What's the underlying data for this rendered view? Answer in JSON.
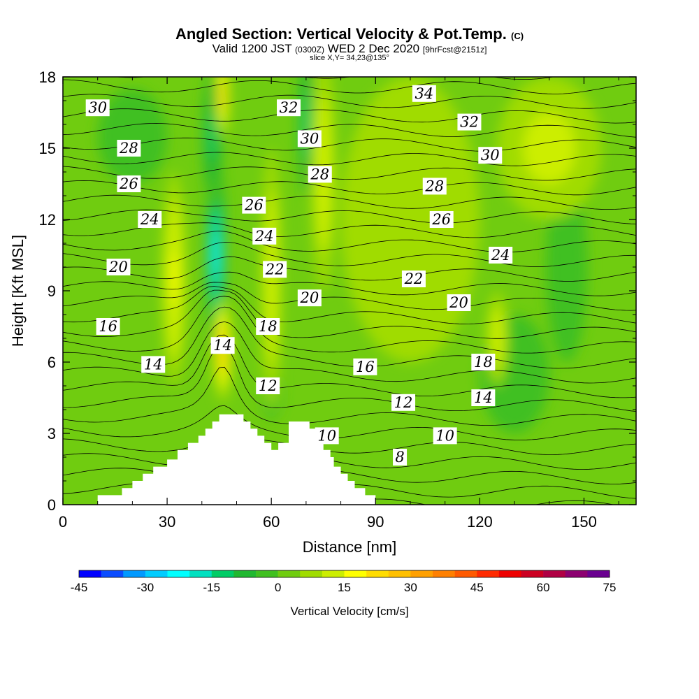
{
  "header": {
    "title_main": "Angled Section: Vertical Velocity & Pot.Temp.",
    "title_mark": "(C)",
    "valid_prefix": "Valid 1200 JST",
    "valid_utc": "(0300Z)",
    "valid_date": "WED 2 Dec 2020",
    "forecast": "[9hrFcst@2151z]",
    "slice": "slice X,Y= 34,23@135°"
  },
  "chart_data": {
    "type": "heatmap",
    "xlabel": "Distance [nm]",
    "ylabel": "Height [Kft MSL]",
    "xlim": [
      0,
      165
    ],
    "ylim": [
      0,
      18
    ],
    "x_ticks": [
      "0",
      "30",
      "60",
      "90",
      "120",
      "150"
    ],
    "y_ticks": [
      "0",
      "3",
      "6",
      "9",
      "12",
      "15",
      "18"
    ],
    "grid": false,
    "field": "Vertical Velocity",
    "colorbar": {
      "title": "Vertical Velocity [cm/s]",
      "min": -45,
      "max": 75,
      "step": 5,
      "tick_labels": [
        "-45",
        "-30",
        "-15",
        "0",
        "15",
        "30",
        "45",
        "60",
        "75"
      ],
      "colors": [
        "#0000ff",
        "#0a4cff",
        "#0099ff",
        "#00ccff",
        "#00ffff",
        "#00e0c0",
        "#00cc66",
        "#20b830",
        "#40c020",
        "#70cc10",
        "#a0dc00",
        "#ccee00",
        "#ffff00",
        "#ffdc00",
        "#ffc000",
        "#ffa000",
        "#ff8000",
        "#ff5a00",
        "#ff2a00",
        "#ee0000",
        "#cc0022",
        "#b00044",
        "#8c0070",
        "#6a0090"
      ]
    },
    "terrain_profile": [
      [
        10,
        0.4
      ],
      [
        17,
        0.4
      ],
      [
        17,
        0.7
      ],
      [
        20,
        0.7
      ],
      [
        20,
        1.0
      ],
      [
        23,
        1.0
      ],
      [
        23,
        1.3
      ],
      [
        26,
        1.3
      ],
      [
        26,
        1.6
      ],
      [
        30,
        1.6
      ],
      [
        30,
        1.9
      ],
      [
        33,
        1.9
      ],
      [
        33,
        2.3
      ],
      [
        36,
        2.3
      ],
      [
        36,
        2.6
      ],
      [
        39,
        2.6
      ],
      [
        39,
        2.9
      ],
      [
        41,
        2.9
      ],
      [
        41,
        3.2
      ],
      [
        43,
        3.2
      ],
      [
        43,
        3.5
      ],
      [
        45,
        3.5
      ],
      [
        45,
        3.8
      ],
      [
        52,
        3.8
      ],
      [
        52,
        3.5
      ],
      [
        54,
        3.5
      ],
      [
        54,
        3.2
      ],
      [
        56,
        3.2
      ],
      [
        56,
        2.9
      ],
      [
        58,
        2.9
      ],
      [
        58,
        2.6
      ],
      [
        60,
        2.6
      ],
      [
        60,
        2.3
      ],
      [
        62,
        2.3
      ],
      [
        62,
        2.6
      ],
      [
        65,
        2.6
      ],
      [
        65,
        3.5
      ],
      [
        71,
        3.5
      ],
      [
        71,
        3.2
      ],
      [
        73,
        3.2
      ],
      [
        73,
        2.9
      ],
      [
        75,
        2.9
      ],
      [
        75,
        2.3
      ],
      [
        77,
        2.3
      ],
      [
        77,
        2.0
      ],
      [
        78,
        2.0
      ],
      [
        78,
        1.6
      ],
      [
        80,
        1.6
      ],
      [
        80,
        1.3
      ],
      [
        82,
        1.3
      ],
      [
        82,
        1.0
      ],
      [
        84,
        1.0
      ],
      [
        84,
        0.7
      ],
      [
        87,
        0.7
      ],
      [
        87,
        0.4
      ],
      [
        90,
        0.4
      ],
      [
        90,
        0.0
      ],
      [
        10,
        0.0
      ]
    ],
    "updraft_regions": [
      {
        "x": 32,
        "y": 9.5,
        "rx": 3.5,
        "ry": 4.5,
        "w": 18
      },
      {
        "x": 46,
        "y": 17.2,
        "rx": 1.8,
        "ry": 1.8,
        "w": 25
      },
      {
        "x": 46,
        "y": 6.5,
        "rx": 2.5,
        "ry": 2.2,
        "w": 28
      },
      {
        "x": 60,
        "y": 9.5,
        "rx": 3.0,
        "ry": 5.5,
        "w": 14
      },
      {
        "x": 75,
        "y": 14.0,
        "rx": 3.5,
        "ry": 5.0,
        "w": 13
      },
      {
        "x": 125,
        "y": 7.0,
        "rx": 3.0,
        "ry": 2.0,
        "w": 14
      },
      {
        "x": 140,
        "y": 15.0,
        "rx": 15,
        "ry": 3.0,
        "w": 11
      },
      {
        "x": 100,
        "y": 12.0,
        "rx": 20,
        "ry": 6.0,
        "w": 9
      }
    ],
    "downdraft_regions": [
      {
        "x": 44,
        "y": 10.5,
        "rx": 3.0,
        "ry": 4.5,
        "w": -25
      },
      {
        "x": 43,
        "y": 15.5,
        "rx": 3.0,
        "ry": 3.0,
        "w": -15
      },
      {
        "x": 70,
        "y": 16.0,
        "rx": 2.0,
        "ry": 3.0,
        "w": -12
      },
      {
        "x": 60,
        "y": 4.8,
        "rx": 3.0,
        "ry": 1.2,
        "w": -8
      },
      {
        "x": 145,
        "y": 10.0,
        "rx": 6.0,
        "ry": 4.0,
        "w": -3
      },
      {
        "x": 130,
        "y": 5.5,
        "rx": 10.0,
        "ry": 2.5,
        "w": -2
      },
      {
        "x": 20,
        "y": 15.5,
        "rx": 10.0,
        "ry": 2.0,
        "w": -1
      }
    ],
    "isentrope_levels": [
      {
        "value": 8,
        "label": "8",
        "label_at": [
          97,
          2.0
        ]
      },
      {
        "value": 10,
        "label": "10",
        "label_at": [
          110,
          2.9
        ]
      },
      {
        "value": 10,
        "label": "10",
        "label_at": [
          76,
          2.9
        ]
      },
      {
        "value": 12,
        "label": "12",
        "label_at": [
          98,
          4.3
        ]
      },
      {
        "value": 12,
        "label": "12",
        "label_at": [
          59,
          5.0
        ]
      },
      {
        "value": 14,
        "label": "14",
        "label_at": [
          121,
          4.5
        ]
      },
      {
        "value": 14,
        "label": "14",
        "label_at": [
          46,
          6.7
        ]
      },
      {
        "value": 14,
        "label": "14",
        "label_at": [
          26,
          5.9
        ]
      },
      {
        "value": 16,
        "label": "16",
        "label_at": [
          87,
          5.8
        ]
      },
      {
        "value": 16,
        "label": "16",
        "label_at": [
          13,
          7.5
        ]
      },
      {
        "value": 18,
        "label": "18",
        "label_at": [
          121,
          6.0
        ]
      },
      {
        "value": 18,
        "label": "18",
        "label_at": [
          59,
          7.5
        ]
      },
      {
        "value": 20,
        "label": "20",
        "label_at": [
          114,
          8.5
        ]
      },
      {
        "value": 20,
        "label": "20",
        "label_at": [
          71,
          8.7
        ]
      },
      {
        "value": 20,
        "label": "20",
        "label_at": [
          16,
          10.0
        ]
      },
      {
        "value": 22,
        "label": "22",
        "label_at": [
          101,
          9.5
        ]
      },
      {
        "value": 22,
        "label": "22",
        "label_at": [
          61,
          9.9
        ]
      },
      {
        "value": 24,
        "label": "24",
        "label_at": [
          126,
          10.5
        ]
      },
      {
        "value": 24,
        "label": "24",
        "label_at": [
          58,
          11.3
        ]
      },
      {
        "value": 24,
        "label": "24",
        "label_at": [
          25,
          12.0
        ]
      },
      {
        "value": 26,
        "label": "26",
        "label_at": [
          109,
          12.0
        ]
      },
      {
        "value": 26,
        "label": "26",
        "label_at": [
          55,
          12.6
        ]
      },
      {
        "value": 26,
        "label": "26",
        "label_at": [
          19,
          13.5
        ]
      },
      {
        "value": 28,
        "label": "28",
        "label_at": [
          107,
          13.4
        ]
      },
      {
        "value": 28,
        "label": "28",
        "label_at": [
          74,
          13.9
        ]
      },
      {
        "value": 28,
        "label": "28",
        "label_at": [
          19,
          15.0
        ]
      },
      {
        "value": 30,
        "label": "30",
        "label_at": [
          123,
          14.7
        ]
      },
      {
        "value": 30,
        "label": "30",
        "label_at": [
          71,
          15.4
        ]
      },
      {
        "value": 30,
        "label": "30",
        "label_at": [
          10,
          16.7
        ]
      },
      {
        "value": 32,
        "label": "32",
        "label_at": [
          117,
          16.1
        ]
      },
      {
        "value": 32,
        "label": "32",
        "label_at": [
          65,
          16.7
        ]
      },
      {
        "value": 34,
        "label": "34",
        "label_at": [
          104,
          17.3
        ]
      }
    ]
  }
}
